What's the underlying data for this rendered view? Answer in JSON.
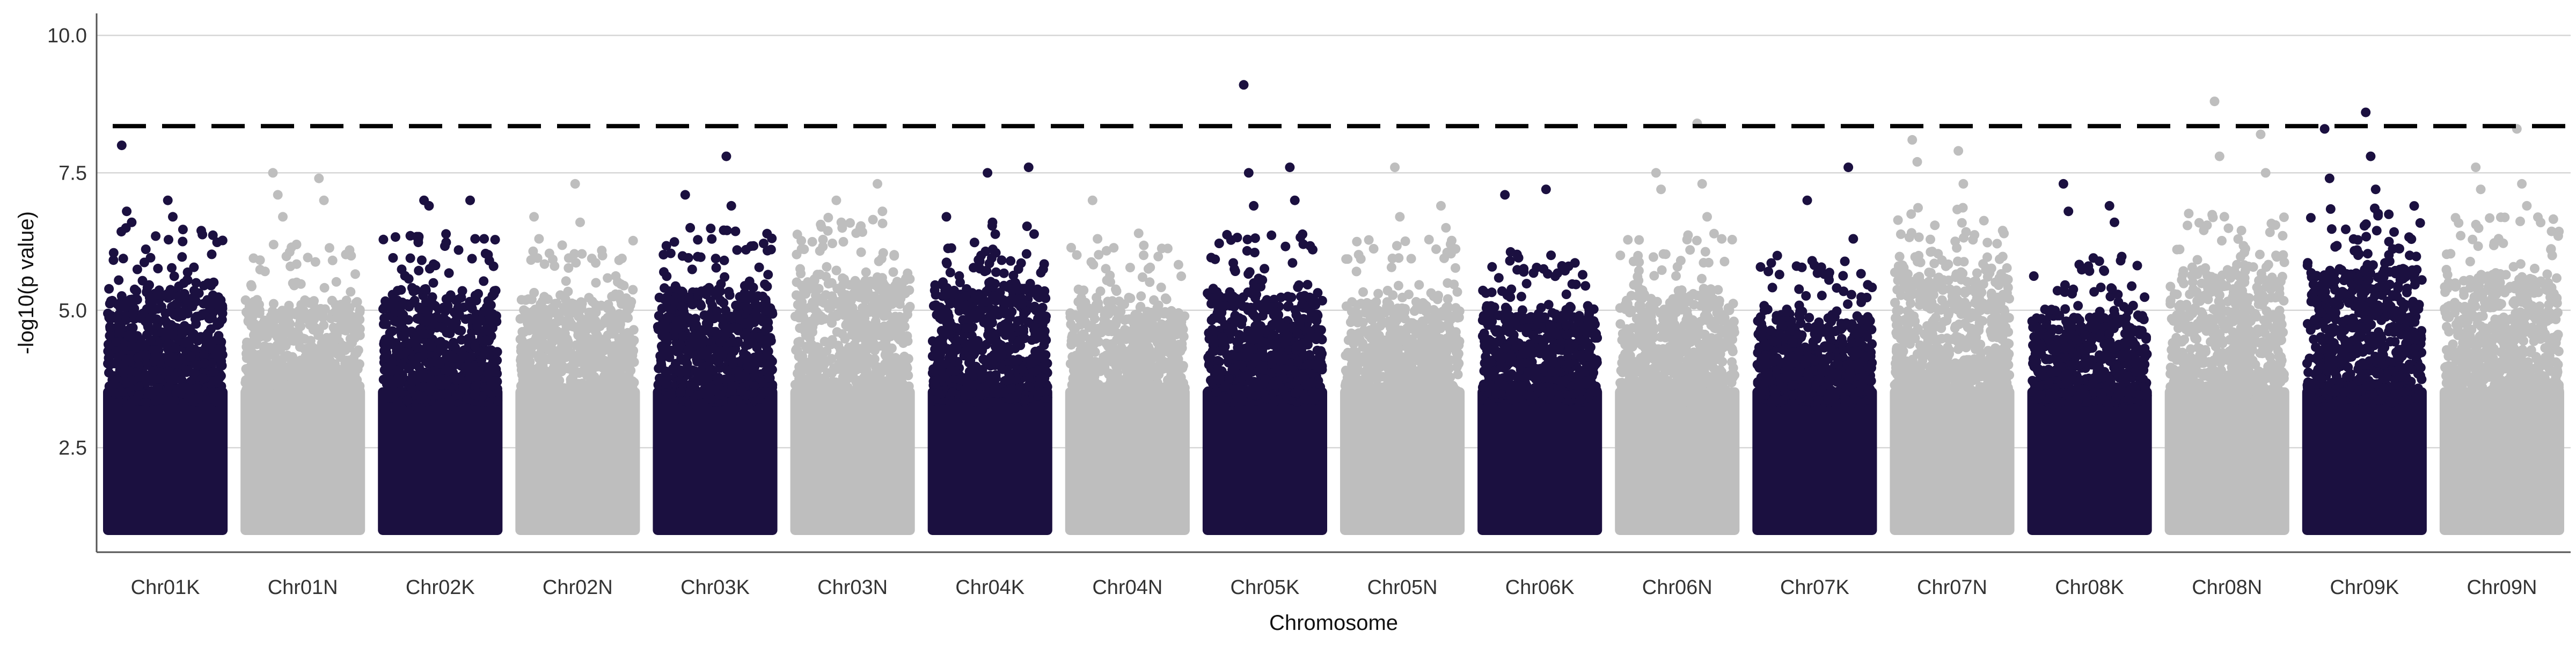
{
  "chart_data": {
    "type": "scatter",
    "title": "",
    "xlabel": "Chromosome",
    "ylabel": "-log10(p value)",
    "ylim": [
      0.6,
      10.4
    ],
    "y_ticks": [
      2.5,
      5.0,
      7.5,
      10.0
    ],
    "y_tick_labels": [
      "2.5",
      "5.0",
      "7.5",
      "10.0"
    ],
    "grid": "horizontal-major",
    "threshold": 8.35,
    "series_colors": [
      "#1b1040",
      "#bebebe"
    ],
    "categories": [
      "Chr01K",
      "Chr01N",
      "Chr02K",
      "Chr02N",
      "Chr03K",
      "Chr03N",
      "Chr04K",
      "Chr04N",
      "Chr05K",
      "Chr05N",
      "Chr06K",
      "Chr06N",
      "Chr07K",
      "Chr07N",
      "Chr08K",
      "Chr08N",
      "Chr09K",
      "Chr09N"
    ],
    "chromosomes": [
      {
        "name": "Chr01K",
        "color": "#1b1040",
        "body_top": 5.4,
        "notable": [
          8.0,
          7.0,
          6.8,
          6.7,
          6.6
        ]
      },
      {
        "name": "Chr01N",
        "color": "#bebebe",
        "body_top": 5.1,
        "notable": [
          7.5,
          7.4,
          7.1,
          7.0,
          6.7
        ]
      },
      {
        "name": "Chr02K",
        "color": "#1b1040",
        "body_top": 5.3,
        "notable": [
          7.0,
          7.0,
          6.9,
          6.3
        ]
      },
      {
        "name": "Chr02N",
        "color": "#bebebe",
        "body_top": 5.2,
        "notable": [
          7.3,
          6.7,
          6.6,
          6.3
        ]
      },
      {
        "name": "Chr03K",
        "color": "#1b1040",
        "body_top": 5.4,
        "notable": [
          7.8,
          7.1,
          6.9,
          6.5
        ]
      },
      {
        "name": "Chr03N",
        "color": "#bebebe",
        "body_top": 5.6,
        "notable": [
          7.3,
          7.0,
          6.8,
          6.6
        ]
      },
      {
        "name": "Chr04K",
        "color": "#1b1040",
        "body_top": 5.5,
        "notable": [
          7.6,
          7.5,
          6.7,
          6.6
        ]
      },
      {
        "name": "Chr04N",
        "color": "#bebebe",
        "body_top": 5.1,
        "notable": [
          7.0,
          6.4,
          6.3,
          6.0
        ]
      },
      {
        "name": "Chr05K",
        "color": "#1b1040",
        "body_top": 5.3,
        "notable": [
          9.1,
          7.6,
          7.5,
          7.0,
          6.9
        ]
      },
      {
        "name": "Chr05N",
        "color": "#bebebe",
        "body_top": 5.2,
        "notable": [
          7.6,
          6.9,
          6.7,
          6.5
        ]
      },
      {
        "name": "Chr06K",
        "color": "#1b1040",
        "body_top": 5.0,
        "notable": [
          7.2,
          7.1,
          6.0,
          5.9
        ]
      },
      {
        "name": "Chr06N",
        "color": "#bebebe",
        "body_top": 5.3,
        "notable": [
          8.4,
          7.5,
          7.3,
          7.2,
          6.7
        ]
      },
      {
        "name": "Chr07K",
        "color": "#1b1040",
        "body_top": 4.9,
        "notable": [
          7.6,
          7.0,
          6.3,
          5.9
        ]
      },
      {
        "name": "Chr07N",
        "color": "#bebebe",
        "body_top": 5.8,
        "notable": [
          8.1,
          7.9,
          7.7,
          7.3
        ]
      },
      {
        "name": "Chr08K",
        "color": "#1b1040",
        "body_top": 4.9,
        "notable": [
          7.3,
          6.9,
          6.8,
          6.6
        ]
      },
      {
        "name": "Chr08N",
        "color": "#bebebe",
        "body_top": 5.7,
        "notable": [
          8.8,
          8.2,
          7.8,
          7.5
        ]
      },
      {
        "name": "Chr09K",
        "color": "#1b1040",
        "body_top": 5.8,
        "notable": [
          8.6,
          8.3,
          7.8,
          7.4,
          7.2
        ]
      },
      {
        "name": "Chr09N",
        "color": "#bebebe",
        "body_top": 5.6,
        "notable": [
          8.3,
          7.6,
          7.3,
          7.2,
          6.9
        ]
      }
    ]
  }
}
